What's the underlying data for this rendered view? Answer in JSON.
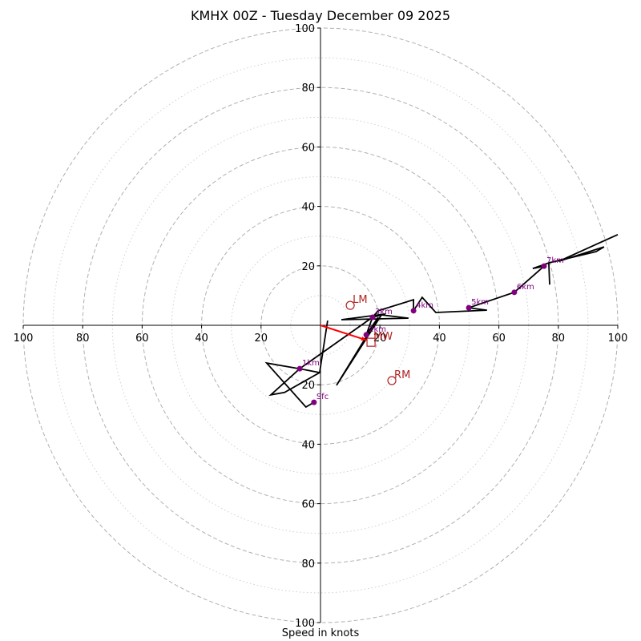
{
  "chart_data": {
    "type": "scatter",
    "subtype": "hodograph",
    "title": "KMHX 00Z - Tuesday December 09 2025",
    "xlabel": "Speed in knots",
    "ylabel": "",
    "axis_range_knots": [
      -100,
      100
    ],
    "rings": {
      "dashed": [
        20,
        40,
        60,
        80,
        100
      ],
      "dotted": [
        10,
        30,
        50,
        70,
        90
      ]
    },
    "x_tick_labels": [
      "100",
      "80",
      "60",
      "40",
      "20",
      "20",
      "40",
      "60",
      "80",
      "100"
    ],
    "x_ticks": [
      -100,
      -80,
      -60,
      -40,
      -20,
      20,
      40,
      60,
      80,
      100
    ],
    "y_tick_labels": [
      "100",
      "80",
      "60",
      "40",
      "20",
      "20",
      "40",
      "60",
      "80",
      "100"
    ],
    "y_ticks": [
      100,
      80,
      60,
      40,
      20,
      -20,
      -40,
      -60,
      -80,
      -100
    ],
    "hodograph_path": [
      [
        -2.2,
        -25.9
      ],
      [
        -4.9,
        -27.5
      ],
      [
        -18.1,
        -12.7
      ],
      [
        -7.0,
        -14.6
      ],
      [
        -0.3,
        -15.9
      ],
      [
        2.4,
        1.6
      ],
      [
        -0.3,
        -15.9
      ],
      [
        -12.1,
        -22.6
      ],
      [
        -16.7,
        -23.4
      ],
      [
        -7.0,
        -14.6
      ],
      [
        17.5,
        2.7
      ],
      [
        21.8,
        3.8
      ],
      [
        7.0,
        1.9
      ],
      [
        29.6,
        2.4
      ],
      [
        20.5,
        3.5
      ],
      [
        5.4,
        -20.2
      ],
      [
        19.4,
        2.7
      ],
      [
        15.4,
        -3.2
      ],
      [
        17.5,
        2.7
      ],
      [
        19.4,
        4.9
      ],
      [
        31.3,
        8.6
      ],
      [
        31.3,
        4.9
      ],
      [
        34.2,
        9.4
      ],
      [
        38.8,
        4.3
      ],
      [
        56.0,
        5.1
      ],
      [
        49.9,
        5.9
      ],
      [
        65.2,
        11.1
      ],
      [
        75.2,
        19.9
      ],
      [
        71.4,
        19.1
      ],
      [
        76.8,
        21.0
      ],
      [
        77.1,
        13.7
      ],
      [
        76.8,
        21.0
      ],
      [
        92.7,
        24.8
      ],
      [
        95.4,
        26.4
      ],
      [
        80.1,
        21.5
      ],
      [
        100.0,
        30.5
      ]
    ],
    "height_markers": [
      {
        "label": "Sfc",
        "u": -2.2,
        "v": -25.9
      },
      {
        "label": "1km",
        "u": -7.0,
        "v": -14.6
      },
      {
        "label": "2km",
        "u": 15.4,
        "v": -3.2
      },
      {
        "label": "3km",
        "u": 17.5,
        "v": 2.7
      },
      {
        "label": "4km",
        "u": 31.3,
        "v": 4.9
      },
      {
        "label": "5km",
        "u": 49.9,
        "v": 5.9
      },
      {
        "label": "6km",
        "u": 65.2,
        "v": 11.1
      },
      {
        "label": "7km",
        "u": 75.2,
        "v": 19.9
      }
    ],
    "storm_motion": [
      {
        "label": "LM",
        "u": 10.0,
        "v": 6.7,
        "marker": "circle"
      },
      {
        "label": "RM",
        "u": 24.0,
        "v": -18.6,
        "marker": "circle"
      },
      {
        "label": "MW",
        "u": 17.0,
        "v": -5.7,
        "marker": "square"
      }
    ],
    "mean_wind_vector": {
      "from": [
        0,
        0
      ],
      "to": [
        15.5,
        -5.0
      ]
    },
    "colors": {
      "path": "#000000",
      "height_marker": "#800080",
      "storm_marker": "#b22222",
      "vector": "#ff0000",
      "rings": "#b0b0b0"
    }
  }
}
